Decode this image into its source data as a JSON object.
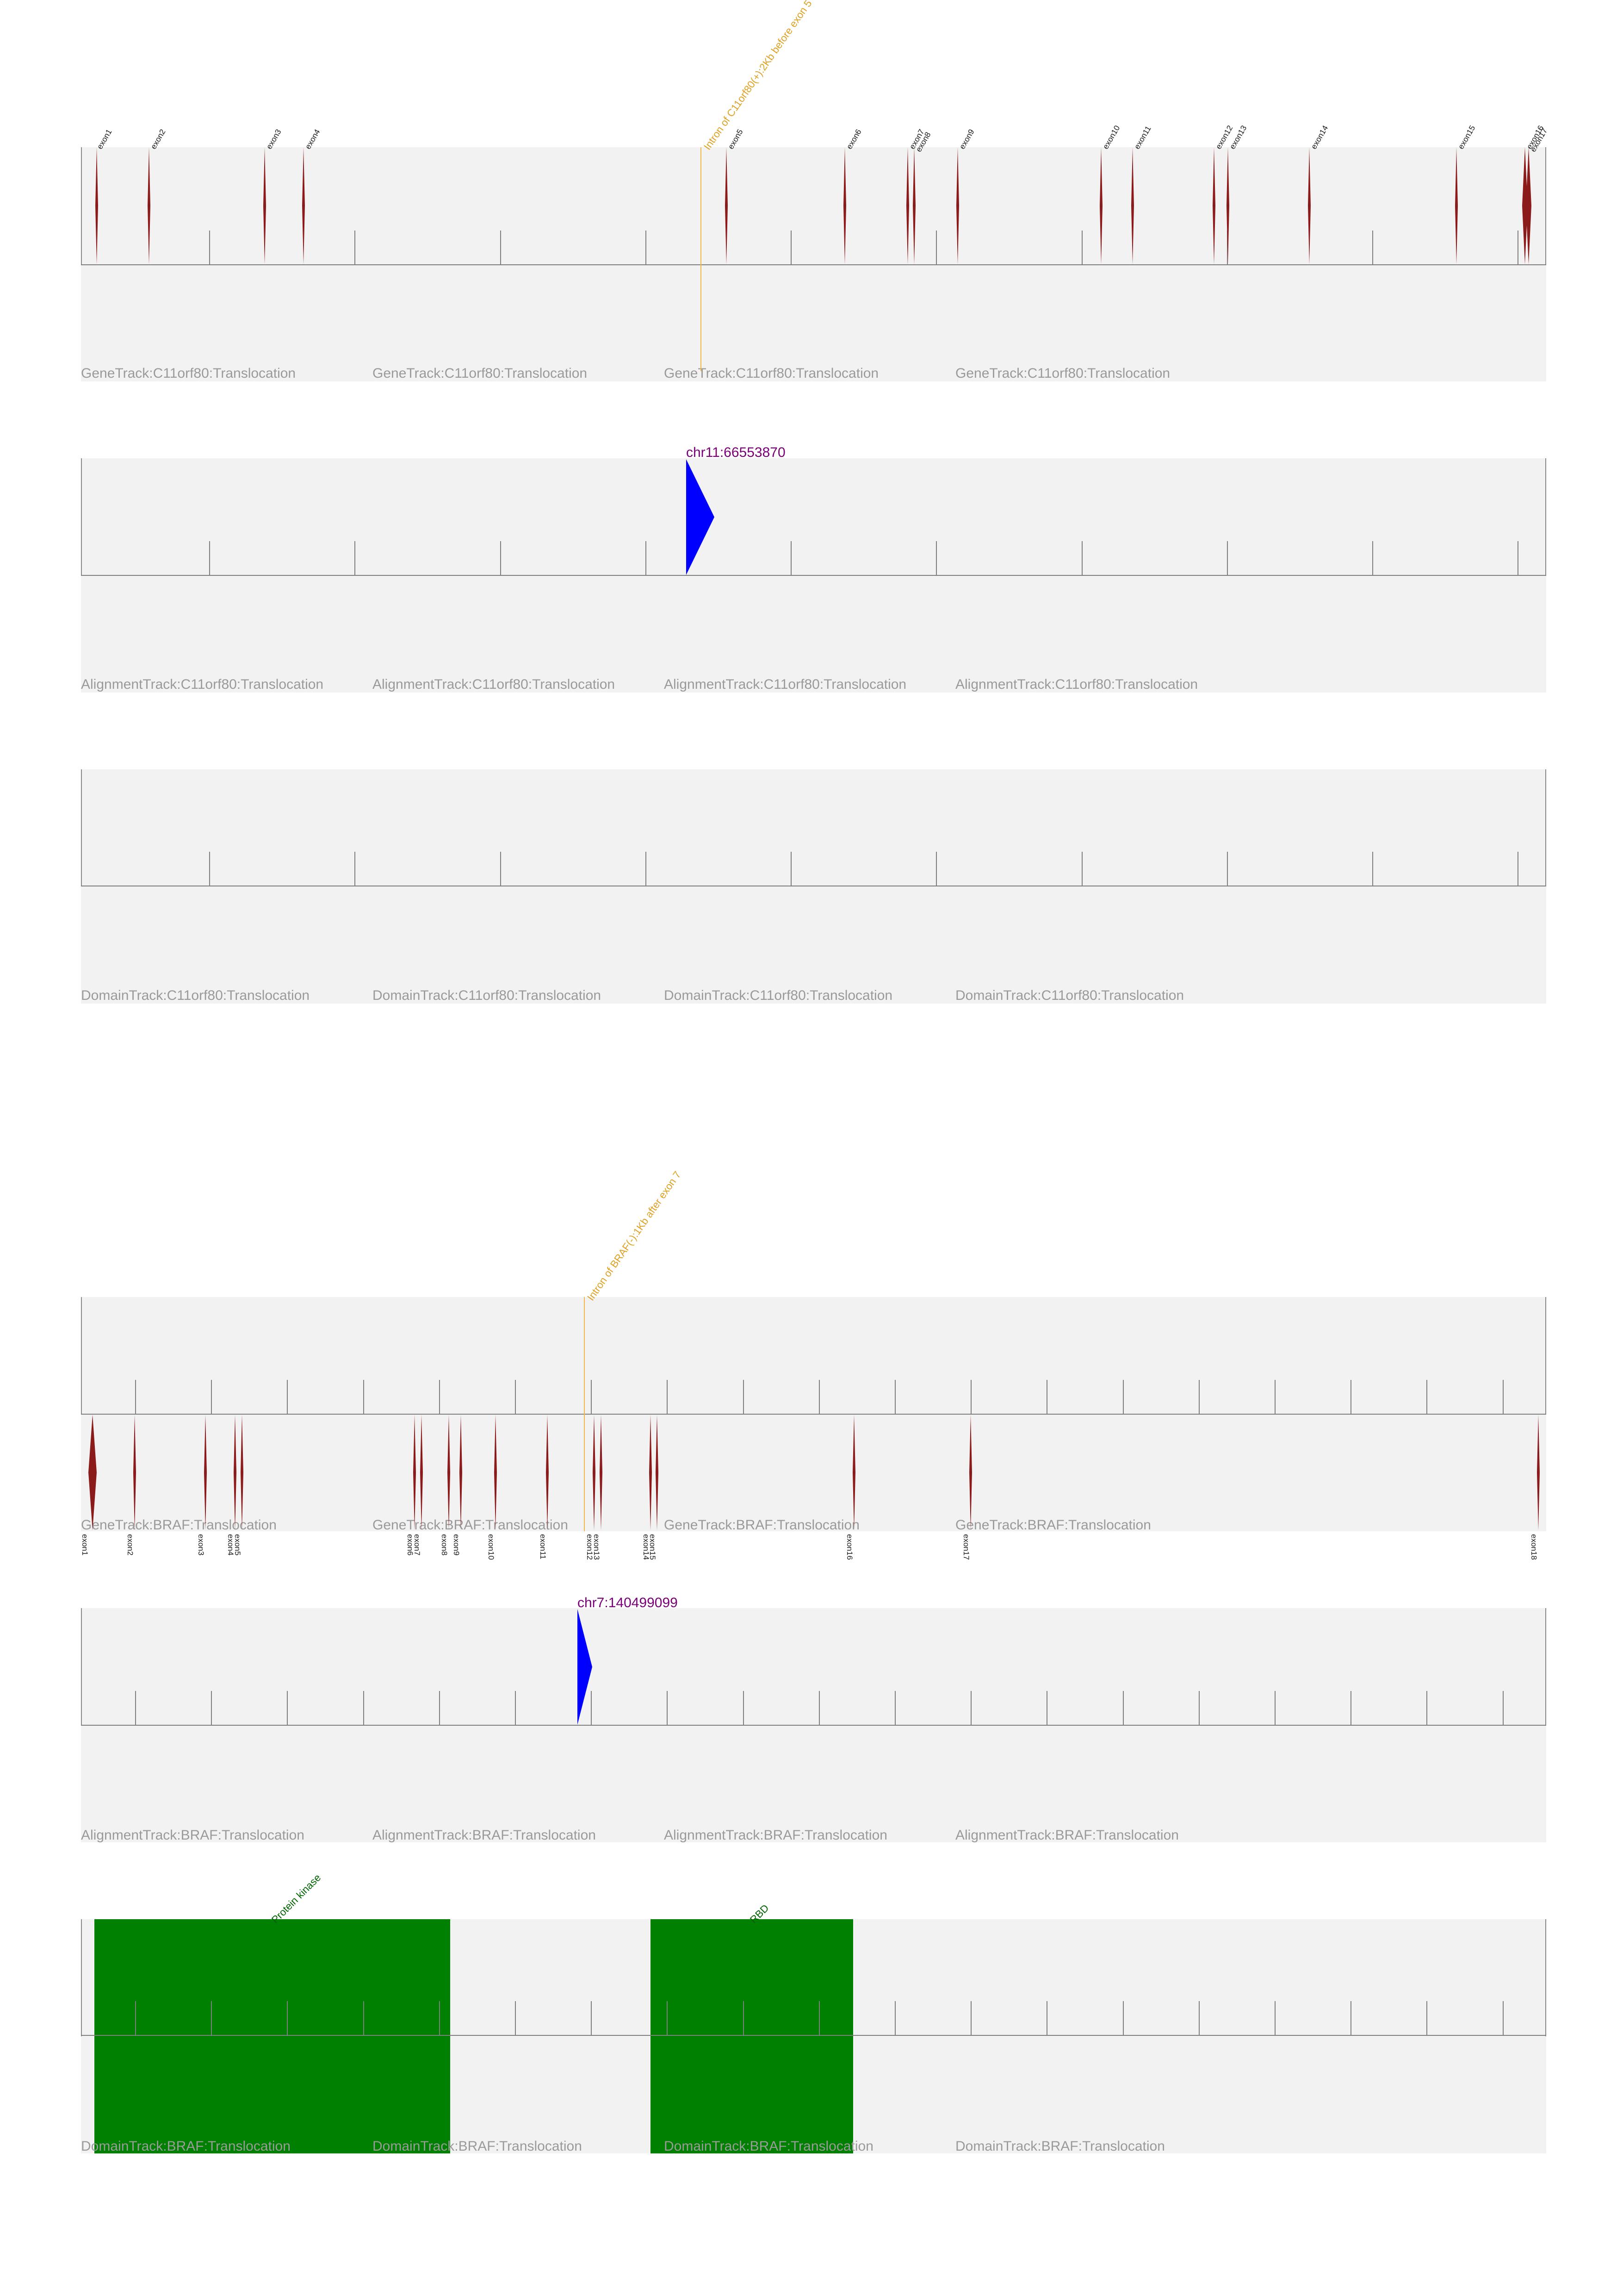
{
  "c11orf80": {
    "gene_track_label": "GeneTrack:C11orf80:Translocation",
    "alignment_track_label": "AlignmentTrack:C11orf80:Translocation",
    "domain_track_label": "DomainTrack:C11orf80:Translocation",
    "breakpoint_label": "Intron of C11orf80(+):2Kb before exon 5",
    "coordinate_label": "chr11:66553870",
    "exons": [
      "exon1",
      "exon2",
      "exon3",
      "exon4",
      "exon5",
      "exon6",
      "exon7",
      "exon8",
      "exon9",
      "exon10",
      "exon11",
      "exon12",
      "exon13",
      "exon14",
      "exon15",
      "exon16",
      "exon17"
    ]
  },
  "braf": {
    "gene_track_label": "GeneTrack:BRAF:Translocation",
    "alignment_track_label": "AlignmentTrack:BRAF:Translocation",
    "domain_track_label": "DomainTrack:BRAF:Translocation",
    "breakpoint_label": "Intron of BRAF(-):1Kb after exon 7",
    "coordinate_label": "chr7:140499099",
    "exons": [
      "exon1",
      "exon2",
      "exon3",
      "exon4",
      "exon5",
      "exon6",
      "exon7",
      "exon8",
      "exon9",
      "exon10",
      "exon11",
      "exon12",
      "exon13",
      "exon14",
      "exon15",
      "exon16",
      "exon17",
      "exon18"
    ],
    "domains": [
      "Protein kinase",
      "RBD"
    ]
  },
  "colors": {
    "exon": "#8b1a1a",
    "breakpoint": "#f0b84a",
    "alignment": "#0000ff",
    "domain": "#008000",
    "track_background": "#f2f2f2"
  }
}
